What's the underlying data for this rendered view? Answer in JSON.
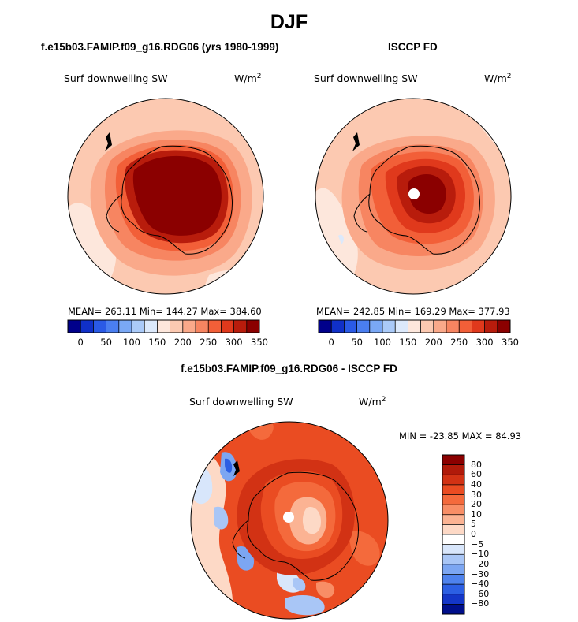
{
  "figure": {
    "season": "DJF"
  },
  "panels": [
    {
      "title": "f.e15b03.FAMIP.f09_g16.RDG06 (yrs 1980-1999)",
      "variable": "Surf downwelling SW",
      "units_base": "W/m",
      "units_exp": "2",
      "stats": "MEAN= 263.11  Min= 144.27  Max= 384.60",
      "colorbar_ticks": [
        "0",
        "50",
        "100",
        "150",
        "200",
        "250",
        "300",
        "350"
      ]
    },
    {
      "title": "ISCCP FD",
      "variable": "Surf downwelling SW",
      "units_base": "W/m",
      "units_exp": "2",
      "stats": "MEAN= 242.85  Min= 169.29  Max= 377.93",
      "colorbar_ticks": [
        "0",
        "50",
        "100",
        "150",
        "200",
        "250",
        "300",
        "350"
      ]
    },
    {
      "title": "f.e15b03.FAMIP.f09_g16.RDG06 - ISCCP FD",
      "variable": "Surf downwelling SW",
      "units_base": "W/m",
      "units_exp": "2",
      "stats": "MIN = -23.85 MAX =  84.93",
      "colorbar_ticks": [
        "80",
        "60",
        "40",
        "30",
        "20",
        "10",
        "5",
        "0",
        "−5",
        "−10",
        "−20",
        "−30",
        "−40",
        "−60",
        "−80"
      ]
    }
  ],
  "colors": {
    "abs_scale": [
      "#00008b",
      "#1030c8",
      "#2a5ae6",
      "#4a7ef0",
      "#7aa8f5",
      "#aacaf8",
      "#dce9fb",
      "#fde7dc",
      "#fcc9b1",
      "#faa98a",
      "#f78561",
      "#f25f38",
      "#e0391c",
      "#b81c0c",
      "#8b0000"
    ],
    "diff_scale": [
      "#8b0000",
      "#b01a0a",
      "#d23214",
      "#ea4c22",
      "#f46a3c",
      "#f88e66",
      "#fbb393",
      "#fdd9c6",
      "#ffffff",
      "#d8e6fb",
      "#a9c6f6",
      "#7ca6f2",
      "#4e82ed",
      "#2c5fe3",
      "#1436c8",
      "#000f8b"
    ]
  }
}
